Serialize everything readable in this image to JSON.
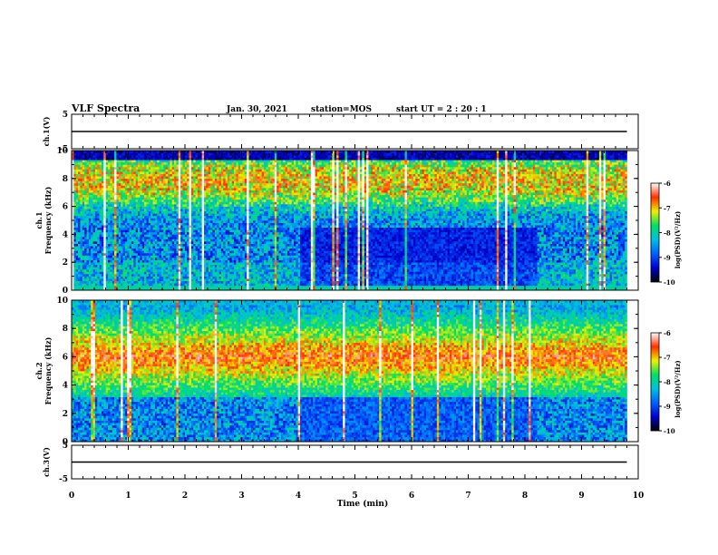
{
  "header": {
    "title": "VLF Spectra",
    "date": "Jan. 30, 2021",
    "station": "station=MOS",
    "start": "start  UT =   2 : 20 : 1"
  },
  "chart_data": [
    {
      "type": "line",
      "name": "panel-ch1-voltage",
      "ylabel": "ch.1(V)",
      "ylim": [
        -5,
        5
      ],
      "yticks": [
        "5",
        "-5"
      ],
      "x": [
        0,
        9.8
      ],
      "values": [
        0,
        0
      ]
    },
    {
      "type": "heatmap",
      "name": "panel-ch1-spectrogram",
      "ylabel": "ch.1\nFrequency (kHz)",
      "ylim": [
        0,
        10
      ],
      "xlim": [
        0,
        10
      ],
      "yticks": [
        "0",
        "2",
        "4",
        "6",
        "8",
        "10"
      ],
      "colorbar": {
        "label": "log(PSD)(V²/Hz)",
        "range": [
          -10,
          -6
        ],
        "ticks": [
          "-6",
          "-7",
          "-8",
          "-9",
          "-10"
        ]
      }
    },
    {
      "type": "heatmap",
      "name": "panel-ch2-spectrogram",
      "ylabel": "ch.2\nFrequency (kHz)",
      "ylim": [
        0,
        10
      ],
      "xlim": [
        0,
        10
      ],
      "yticks": [
        "0",
        "2",
        "4",
        "6",
        "8",
        "10"
      ],
      "colorbar": {
        "label": "log(PSD)(V²/Hz)",
        "range": [
          -10,
          -6
        ],
        "ticks": [
          "-6",
          "-7",
          "-8",
          "-9",
          "-10"
        ]
      }
    },
    {
      "type": "line",
      "name": "panel-ch3-voltage",
      "ylabel": "ch.3(V)",
      "ylim": [
        -5,
        5
      ],
      "yticks": [
        "5",
        "-5"
      ],
      "x": [
        0,
        9.8
      ],
      "values": [
        0,
        0
      ]
    }
  ],
  "xaxis": {
    "label": "Time  (min)",
    "ticks": [
      "0",
      "1",
      "2",
      "3",
      "4",
      "5",
      "6",
      "7",
      "8",
      "9",
      "10"
    ],
    "range": [
      0,
      10
    ]
  },
  "colors": {
    "colormap": [
      "#000000",
      "#0000d0",
      "#0060ff",
      "#00c0e0",
      "#00e060",
      "#f0f000",
      "#ff3000",
      "#ffffff"
    ]
  }
}
